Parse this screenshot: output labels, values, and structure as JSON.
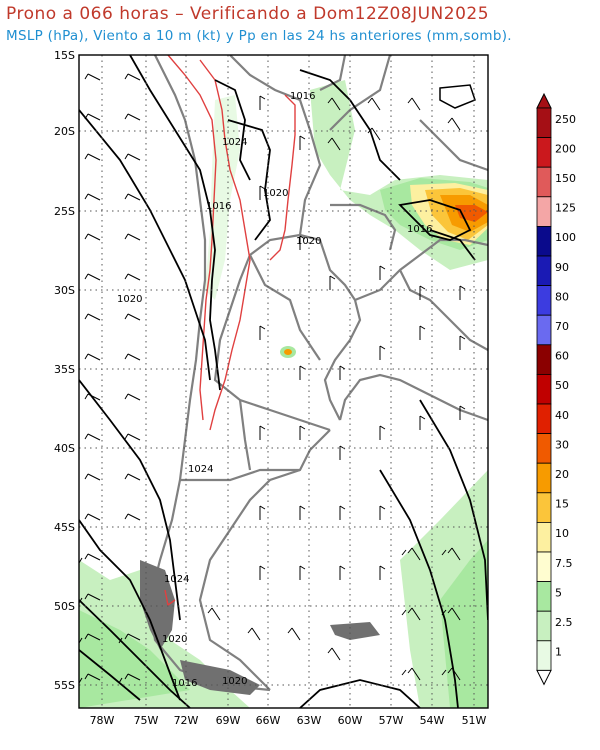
{
  "title_line1": "Prono a 066 horas – Verificando a Dom12Z08JUN2025",
  "title_line2": "MSLP (hPa), Viento a 10 m (kt) y Pp en las 24 hs anteriores (mm,somb).",
  "lat_labels": [
    "15S",
    "20S",
    "25S",
    "30S",
    "35S",
    "40S",
    "45S",
    "50S",
    "55S"
  ],
  "lon_labels": [
    "78W",
    "75W",
    "72W",
    "69W",
    "66W",
    "63W",
    "60W",
    "57W",
    "54W",
    "51W"
  ],
  "isobar_labels": [
    "1016",
    "1024",
    "1020",
    "1016",
    "1020",
    "1020",
    "1016",
    "1024",
    "1024",
    "1020",
    "1016",
    "1020"
  ],
  "colorbar": {
    "levels": [
      "250",
      "200",
      "150",
      "125",
      "100",
      "90",
      "80",
      "70",
      "60",
      "50",
      "40",
      "30",
      "20",
      "15",
      "10",
      "7.5",
      "5",
      "2.5",
      "1"
    ],
    "colors": [
      "#a50f15",
      "#cb181d",
      "#e05a5a",
      "#f4a6a6",
      "#0a0a8c",
      "#1a1ab4",
      "#3c3ce0",
      "#6a6af0",
      "#8b0000",
      "#c00000",
      "#e02000",
      "#f05a00",
      "#f79b00",
      "#fbc53a",
      "#fdf0a0",
      "#fffdd0",
      "#a8e8a0",
      "#c8f0c0",
      "#e8fae4"
    ]
  },
  "colors": {
    "title1": "#c0392b",
    "title2": "#1f8fd1",
    "isobar": "#000000",
    "topo": "#e04040",
    "border": "#808080"
  }
}
